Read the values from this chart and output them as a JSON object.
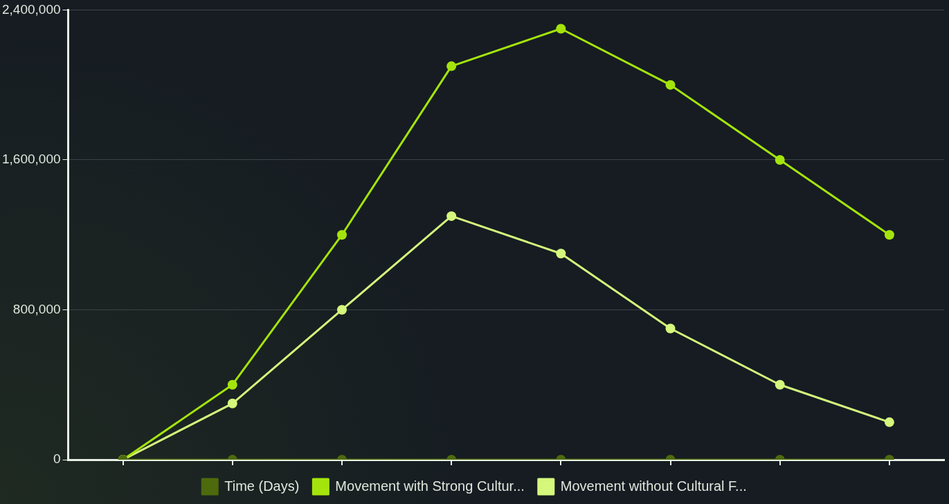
{
  "chart_data": {
    "type": "line",
    "categories": [
      null,
      null,
      null,
      null,
      null,
      null,
      null,
      null
    ],
    "series": [
      {
        "name": "Time (Days)",
        "color": "#4d6a0c",
        "values": [
          0,
          0,
          0,
          0,
          0,
          0,
          0,
          0
        ]
      },
      {
        "name": "Movement with Strong Cultur...",
        "color": "#a4e40c",
        "values": [
          0,
          400000,
          1200000,
          2100000,
          2300000,
          2000000,
          1600000,
          1200000
        ]
      },
      {
        "name": "Movement without Cultural F...",
        "color": "#d5f77c",
        "values": [
          0,
          300000,
          800000,
          1300000,
          1100000,
          700000,
          400000,
          200000
        ]
      }
    ],
    "ylim": [
      0,
      2400000
    ],
    "yticks": [
      0,
      {
        "value": 800000,
        "label": "800,000"
      },
      {
        "value": 1600000,
        "label": "1,600,000"
      },
      {
        "value": 2400000,
        "label": "2,400,000"
      }
    ],
    "grid": "y",
    "legend": "bottom",
    "tick_labels": "y",
    "marker": "circle",
    "line_style": "solid"
  }
}
